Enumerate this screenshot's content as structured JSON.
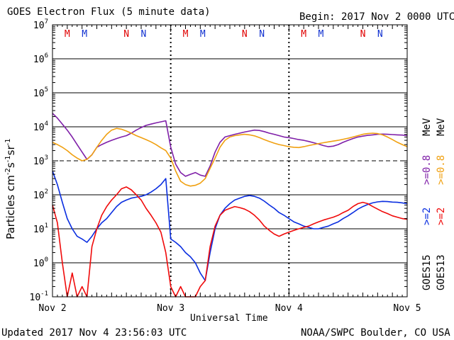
{
  "header": {
    "title": "GOES Electron Flux (5 minute data)",
    "begin": "Begin: 2017 Nov 2 0000 UTC"
  },
  "footer": {
    "updated": "Updated 2017 Nov  4 23:56:03 UTC",
    "source": "NOAA/SWPC Boulder, CO USA"
  },
  "colors": {
    "goes15_08": "#7f1fa8",
    "goes13_08": "#f0a010",
    "goes15_2": "#0a2ee0",
    "goes13_2": "#f00a0a",
    "marker_m_red": "#e00000",
    "marker_m_blue": "#1030d0",
    "axis": "#000000"
  },
  "chart_data": {
    "type": "line",
    "title": "GOES Electron Flux (5 minute data)",
    "xlabel": "Universal Time",
    "ylabel": "Particles cm-2s-1sr-1",
    "yscale": "log",
    "ylim": [
      0.1,
      10000000
    ],
    "xlim": [
      0,
      72
    ],
    "x_units": "hours since 2017 Nov 2 0000 UTC",
    "x_ticks": [
      {
        "x": 0,
        "label": "Nov 2"
      },
      {
        "x": 24,
        "label": "Nov 3"
      },
      {
        "x": 48,
        "label": "Nov 4"
      },
      {
        "x": 72,
        "label": "Nov 5"
      }
    ],
    "y_ticks": [
      {
        "exp": 7,
        "label": "10",
        "sup": "7"
      },
      {
        "exp": 6,
        "label": "10",
        "sup": "6"
      },
      {
        "exp": 5,
        "label": "10",
        "sup": "5"
      },
      {
        "exp": 4,
        "label": "10",
        "sup": "4"
      },
      {
        "exp": 3,
        "label": "10",
        "sup": "3"
      },
      {
        "exp": 2,
        "label": "10",
        "sup": "2"
      },
      {
        "exp": 1,
        "label": "10",
        "sup": "1"
      },
      {
        "exp": 0,
        "label": "10",
        "sup": "0"
      },
      {
        "exp": -1,
        "label": "10",
        "sup": "-1"
      }
    ],
    "threshold_lines": [
      1000
    ],
    "markers": [
      {
        "x": 3,
        "label": "M",
        "color": "marker_m_red"
      },
      {
        "x": 6.5,
        "label": "M",
        "color": "marker_m_blue"
      },
      {
        "x": 15,
        "label": "N",
        "color": "marker_m_red"
      },
      {
        "x": 18.5,
        "label": "N",
        "color": "marker_m_blue"
      },
      {
        "x": 27,
        "label": "M",
        "color": "marker_m_red"
      },
      {
        "x": 30.5,
        "label": "M",
        "color": "marker_m_blue"
      },
      {
        "x": 39,
        "label": "N",
        "color": "marker_m_red"
      },
      {
        "x": 42.5,
        "label": "N",
        "color": "marker_m_blue"
      },
      {
        "x": 51,
        "label": "M",
        "color": "marker_m_red"
      },
      {
        "x": 54.5,
        "label": "M",
        "color": "marker_m_blue"
      },
      {
        "x": 63,
        "label": "N",
        "color": "marker_m_red"
      },
      {
        "x": 66.5,
        "label": "N",
        "color": "marker_m_blue"
      }
    ],
    "right_labels": [
      {
        "text": "GOES15",
        "color": "axis"
      },
      {
        "text": "GOES13",
        "color": "axis"
      },
      {
        "text": ">=2",
        "color": "goes15_2"
      },
      {
        "text": ">=2",
        "color": "goes13_2"
      },
      {
        "text": ">=0.8",
        "color": "goes15_08"
      },
      {
        "text": ">=0.8",
        "color": "goes13_08"
      },
      {
        "text": "MeV",
        "color": "axis"
      },
      {
        "text": "MeV",
        "color": "axis"
      }
    ],
    "series": [
      {
        "name": "GOES15 >=0.8 MeV",
        "color": "goes15_08",
        "x": [
          0,
          1,
          2,
          3,
          4,
          5,
          6,
          7,
          8,
          9,
          10,
          11,
          12,
          13,
          14,
          15,
          16,
          17,
          18,
          19,
          20,
          21,
          22,
          23,
          24,
          25,
          26,
          27,
          28,
          29,
          30,
          31,
          32,
          33,
          34,
          35,
          36,
          37,
          38,
          39,
          40,
          41,
          42,
          43,
          44,
          45,
          46,
          47,
          48,
          49,
          50,
          51,
          52,
          53,
          54,
          55,
          56,
          57,
          58,
          59,
          60,
          61,
          62,
          63,
          64,
          65,
          66,
          67,
          68,
          69,
          70,
          71,
          72
        ],
        "values": [
          25000,
          18000,
          12000,
          8000,
          5000,
          3000,
          1800,
          1100,
          1500,
          2500,
          3000,
          3500,
          4000,
          4500,
          5000,
          5500,
          6500,
          8000,
          9500,
          11000,
          12000,
          13000,
          14000,
          15000,
          2500,
          800,
          450,
          350,
          400,
          450,
          380,
          350,
          700,
          1800,
          3500,
          5000,
          5500,
          6000,
          6500,
          7000,
          7500,
          8000,
          7800,
          7200,
          6500,
          6000,
          5500,
          5000,
          4800,
          4500,
          4200,
          4000,
          3700,
          3400,
          3100,
          2800,
          2600,
          2700,
          3000,
          3500,
          4000,
          4500,
          5000,
          5300,
          5600,
          5800,
          6000,
          6100,
          6000,
          5900,
          5800,
          5700,
          5500
        ]
      },
      {
        "name": "GOES13 >=0.8 MeV",
        "color": "goes13_08",
        "x": [
          0,
          1,
          2,
          3,
          4,
          5,
          6,
          7,
          8,
          9,
          10,
          11,
          12,
          13,
          14,
          15,
          16,
          17,
          18,
          19,
          20,
          21,
          22,
          23,
          24,
          25,
          26,
          27,
          28,
          29,
          30,
          31,
          32,
          33,
          34,
          35,
          36,
          37,
          38,
          39,
          40,
          41,
          42,
          43,
          44,
          45,
          46,
          47,
          48,
          49,
          50,
          51,
          52,
          53,
          54,
          55,
          56,
          57,
          58,
          59,
          60,
          61,
          62,
          63,
          64,
          65,
          66,
          67,
          68,
          69,
          70,
          71,
          72
        ],
        "values": [
          3500,
          3000,
          2500,
          2000,
          1500,
          1200,
          1000,
          1100,
          1500,
          2500,
          4000,
          6000,
          8000,
          9000,
          8500,
          7500,
          6500,
          5500,
          4800,
          4200,
          3600,
          3000,
          2400,
          2000,
          1200,
          500,
          250,
          200,
          180,
          190,
          220,
          300,
          600,
          1200,
          2500,
          4000,
          5000,
          5500,
          5800,
          6000,
          5800,
          5400,
          4800,
          4200,
          3700,
          3300,
          3000,
          2800,
          2600,
          2500,
          2450,
          2600,
          2800,
          3000,
          3200,
          3400,
          3600,
          3800,
          4000,
          4300,
          4600,
          5000,
          5500,
          6000,
          6300,
          6500,
          6300,
          5800,
          5000,
          4200,
          3500,
          3000,
          2600
        ]
      },
      {
        "name": "GOES15 >=2 MeV",
        "color": "goes15_2",
        "x": [
          0,
          1,
          2,
          3,
          4,
          5,
          6,
          7,
          8,
          9,
          10,
          11,
          12,
          13,
          14,
          15,
          16,
          17,
          18,
          19,
          20,
          21,
          22,
          23,
          24,
          25,
          26,
          27,
          28,
          29,
          30,
          31,
          32,
          33,
          34,
          35,
          36,
          37,
          38,
          39,
          40,
          41,
          42,
          43,
          44,
          45,
          46,
          47,
          48,
          49,
          50,
          51,
          52,
          53,
          54,
          55,
          56,
          57,
          58,
          59,
          60,
          61,
          62,
          63,
          64,
          65,
          66,
          67,
          68,
          69,
          70,
          71,
          72
        ],
        "values": [
          500,
          200,
          60,
          20,
          10,
          6,
          5,
          4,
          6,
          10,
          15,
          20,
          30,
          45,
          60,
          70,
          80,
          85,
          90,
          100,
          120,
          150,
          200,
          300,
          5,
          4,
          3,
          2,
          1.5,
          1,
          0.5,
          0.3,
          2,
          10,
          25,
          40,
          55,
          70,
          80,
          90,
          95,
          90,
          80,
          65,
          50,
          40,
          30,
          25,
          20,
          16,
          14,
          12,
          11,
          10,
          10,
          11,
          12,
          14,
          16,
          20,
          24,
          30,
          38,
          45,
          52,
          58,
          62,
          64,
          63,
          61,
          60,
          58,
          55
        ]
      },
      {
        "name": "GOES13 >=2 MeV",
        "color": "goes13_2",
        "x": [
          0,
          1,
          2,
          3,
          4,
          5,
          6,
          7,
          8,
          9,
          10,
          11,
          12,
          13,
          14,
          15,
          16,
          17,
          18,
          19,
          20,
          21,
          22,
          23,
          24,
          25,
          26,
          27,
          28,
          29,
          30,
          31,
          32,
          33,
          34,
          35,
          36,
          37,
          38,
          39,
          40,
          41,
          42,
          43,
          44,
          45,
          46,
          47,
          48,
          49,
          50,
          51,
          52,
          53,
          54,
          55,
          56,
          57,
          58,
          59,
          60,
          61,
          62,
          63,
          64,
          65,
          66,
          67,
          68,
          69,
          70,
          71,
          72
        ],
        "values": [
          50,
          15,
          1,
          0.1,
          0.5,
          0.1,
          0.2,
          0.1,
          3,
          10,
          25,
          45,
          70,
          100,
          150,
          170,
          140,
          100,
          70,
          40,
          25,
          15,
          8,
          2,
          0.2,
          0.1,
          0.2,
          0.1,
          0.1,
          0.1,
          0.2,
          0.3,
          3,
          12,
          25,
          35,
          40,
          45,
          42,
          38,
          32,
          25,
          18,
          12,
          9,
          7,
          6,
          7,
          8,
          9,
          10,
          11,
          12,
          14,
          16,
          18,
          20,
          22,
          25,
          30,
          35,
          45,
          55,
          60,
          55,
          45,
          38,
          32,
          28,
          24,
          22,
          20,
          19
        ]
      }
    ]
  }
}
